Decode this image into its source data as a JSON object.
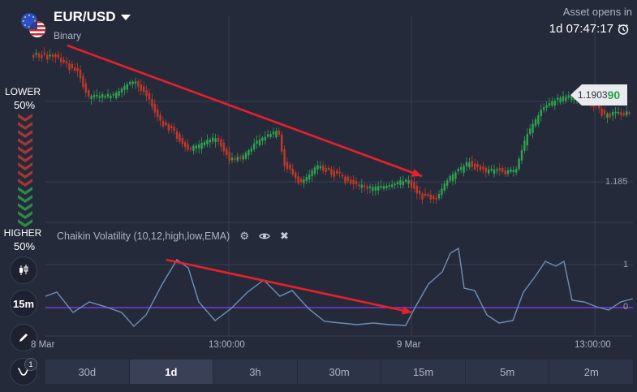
{
  "header": {
    "pair": "EUR/USD",
    "type": "Binary",
    "asset_opens": "Asset opens in",
    "countdown": "1d 07:47:17"
  },
  "sidebar": {
    "lower_label": "LOWER",
    "lower_pct": "50%",
    "higher_label": "HIGHER",
    "higher_pct": "50%",
    "timeframe": "15m",
    "drawings_badge": "1"
  },
  "indicator": {
    "label": "Chaikin Volatility (10,12,high,low,EMA)",
    "icons": [
      "gear-icon",
      "eye-icon",
      "close-icon"
    ]
  },
  "price_tag": {
    "main": "1.1903",
    "highlight": "90"
  },
  "y_axis": {
    "price_level": "1.185",
    "vol_top": "1",
    "vol_zero": "0"
  },
  "x_axis": [
    "8 Mar",
    "13:00:00",
    "9 Mar",
    "13:00:00"
  ],
  "tabs": [
    "30d",
    "1d",
    "3h",
    "30m",
    "15m",
    "5m",
    "2m"
  ],
  "active_tab": "1d",
  "colors": {
    "background": "#252a3a",
    "bull": "#2ea44f",
    "bear": "#c0392b",
    "arrow": "#e8202a",
    "volatility": "#6f8fb5",
    "zero_line": "#8a3ff0"
  }
}
